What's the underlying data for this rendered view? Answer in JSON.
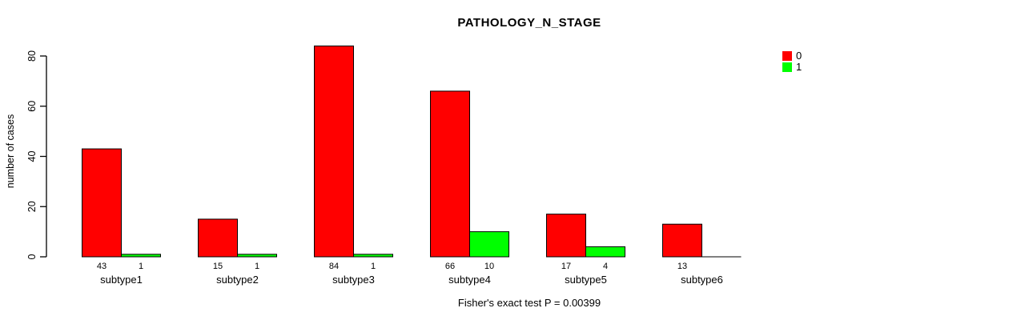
{
  "title": "PATHOLOGY_N_STAGE",
  "ylabel": "number of cases",
  "caption": "Fisher's exact test P = 0.00399",
  "colors": {
    "series0": "#FF0000",
    "series1": "#00FF00",
    "axis": "#000000",
    "background": "#FFFFFF"
  },
  "legend": {
    "items": [
      {
        "label": "0",
        "color": "#FF0000"
      },
      {
        "label": "1",
        "color": "#00FF00"
      }
    ]
  },
  "chart_data": {
    "type": "bar",
    "title": "PATHOLOGY_N_STAGE",
    "xlabel": "",
    "ylabel": "number of cases",
    "categories": [
      "subtype1",
      "subtype2",
      "subtype3",
      "subtype4",
      "subtype5",
      "subtype6"
    ],
    "series": [
      {
        "name": "0",
        "color": "#FF0000",
        "values": [
          43,
          15,
          84,
          66,
          17,
          13
        ],
        "labels": [
          "43",
          "15",
          "84",
          "66",
          "17",
          "13"
        ]
      },
      {
        "name": "1",
        "color": "#00FF00",
        "values": [
          1,
          1,
          1,
          10,
          4,
          0
        ],
        "labels": [
          "1",
          "1",
          "1",
          "10",
          "4",
          ""
        ]
      }
    ],
    "ylim": [
      0,
      80
    ],
    "yticks": [
      0,
      20,
      40,
      60,
      80
    ],
    "grid": false,
    "legend_position": "right",
    "annotation": "Fisher's exact test P = 0.00399"
  }
}
